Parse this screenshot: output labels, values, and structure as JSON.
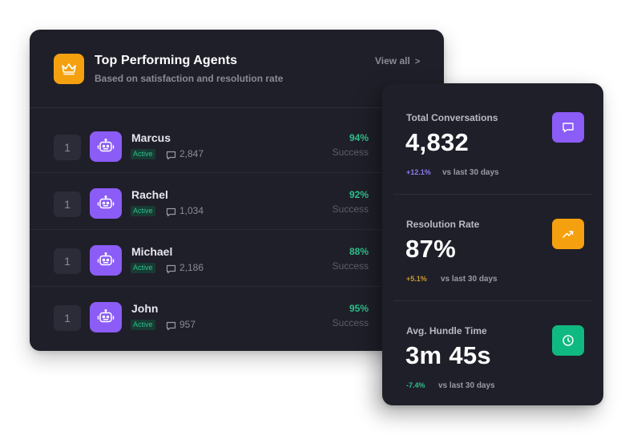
{
  "agents_panel": {
    "title": "Top Performing Agents",
    "subtitle": "Based on satisfaction and resolution rate",
    "view_all": "View all",
    "view_all_chevron": ">",
    "header_icon": "crown-icon",
    "accent_color": "#f5a00f",
    "agents": [
      {
        "rank": "1",
        "name": "Marcus",
        "status": "Active",
        "conversations": "2,847",
        "success_pct": "94%",
        "success_label": "Success",
        "avatar_icon": "robot-icon"
      },
      {
        "rank": "1",
        "name": "Rachel",
        "status": "Active",
        "conversations": "1,034",
        "success_pct": "92%",
        "success_label": "Success",
        "avatar_icon": "robot-icon"
      },
      {
        "rank": "1",
        "name": "Michael",
        "status": "Active",
        "conversations": "2,186",
        "success_pct": "88%",
        "success_label": "Success",
        "avatar_icon": "robot-icon"
      },
      {
        "rank": "1",
        "name": "John",
        "status": "Active",
        "conversations": "957",
        "success_pct": "95%",
        "success_label": "Success",
        "avatar_icon": "robot-icon"
      }
    ]
  },
  "stats_panel": {
    "items": [
      {
        "label": "Total Conversations",
        "value": "4,832",
        "change": "+12.1%",
        "note": "vs last 30 days",
        "change_color": "#8e7cf0",
        "icon": "chat-icon",
        "icon_color": "#8b5cf6"
      },
      {
        "label": "Resolution Rate",
        "value": "87%",
        "change": "+5.1%",
        "note": "vs last 30 days",
        "change_color": "#c99a2e",
        "icon": "trend-up-icon",
        "icon_color": "#f5a00f"
      },
      {
        "label": "Avg. Hundle Time",
        "value": "3m 45s",
        "change": "-7.4%",
        "note": "vs last 30 days",
        "change_color": "#2ec08a",
        "icon": "clock-icon",
        "icon_color": "#10b981"
      }
    ]
  }
}
